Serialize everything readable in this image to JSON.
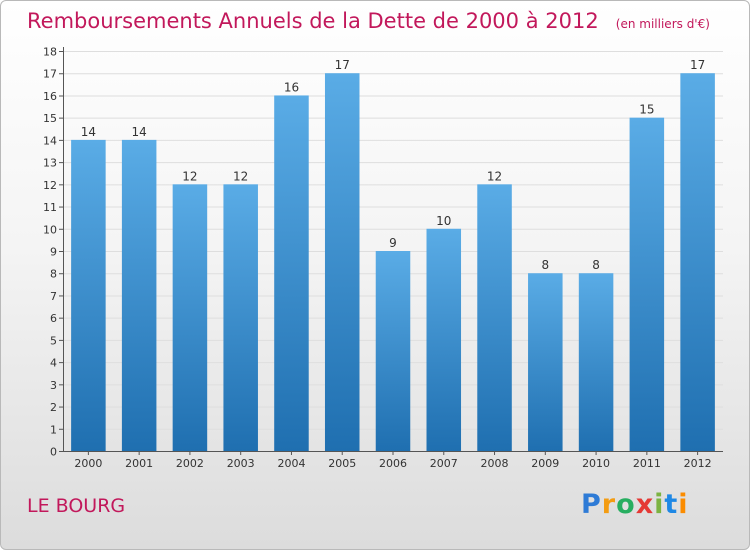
{
  "header": {
    "title": "Remboursements Annuels de la Dette de 2000 à 2012",
    "unit": "(en milliers d'€)"
  },
  "footer": {
    "place": "LE BOURG",
    "logo_letters": [
      "P",
      "r",
      "o",
      "x",
      "i",
      "t",
      "i"
    ],
    "logo_colors": [
      "#2e7bd6",
      "#f39c12",
      "#27ae60",
      "#e53935",
      "#7cb342",
      "#1e88e5",
      "#fb8c00"
    ]
  },
  "chart_data": {
    "type": "bar",
    "title": "Remboursements Annuels de la Dette de 2000 à 2012",
    "categories": [
      "2000",
      "2001",
      "2002",
      "2003",
      "2004",
      "2005",
      "2006",
      "2007",
      "2008",
      "2009",
      "2010",
      "2011",
      "2012"
    ],
    "values": [
      14,
      14,
      12,
      12,
      16,
      17,
      9,
      10,
      12,
      8,
      8,
      15,
      17
    ],
    "data_labels": [
      "14",
      "14",
      "12",
      "12",
      "16",
      "17",
      "9",
      "10",
      "12",
      "8",
      "8",
      "15",
      "17"
    ],
    "y_ticks": [
      "0",
      "1",
      "2",
      "3",
      "4",
      "5",
      "6",
      "7",
      "8",
      "9",
      "10",
      "11",
      "12",
      "13",
      "14",
      "15",
      "16",
      "17",
      "18"
    ],
    "ylim": [
      0,
      18
    ],
    "grid": true,
    "colors": {
      "bar_light": "#5aace6",
      "bar_dark": "#1f6fb0",
      "title": "#c2185b",
      "axis": "#555555",
      "text": "#333333"
    }
  }
}
